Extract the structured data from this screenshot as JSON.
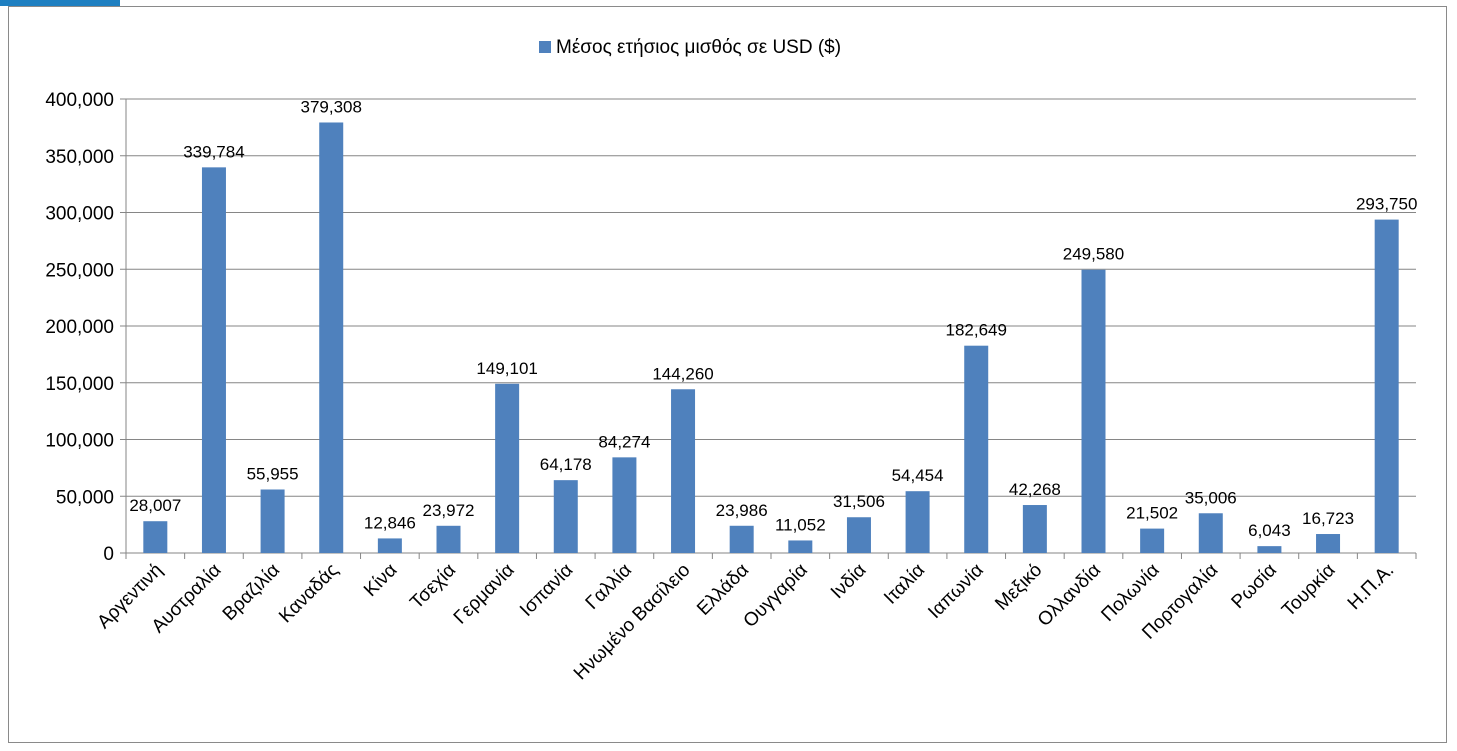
{
  "colors": {
    "bar": "#4f81bd",
    "grid": "#868686",
    "frame_accent": "#1e7fc1"
  },
  "chart_data": {
    "type": "bar",
    "title": "",
    "xlabel": "",
    "ylabel": "",
    "ylim": [
      0,
      400000
    ],
    "yticks": [
      0,
      50000,
      100000,
      150000,
      200000,
      250000,
      300000,
      350000,
      400000
    ],
    "ytick_labels": [
      "0",
      "50,000",
      "100,000",
      "150,000",
      "200,000",
      "250,000",
      "300,000",
      "350,000",
      "400,000"
    ],
    "grid": true,
    "legend_position": "top-center",
    "categories": [
      "Αργεντινή",
      "Αυστραλία",
      "Βραζιλία",
      "Καναδάς",
      "Κίνα",
      "Τσεχία",
      "Γερμανία",
      "Ισπανία",
      "Γαλλία",
      "Ηνωμένο Βασίλειο",
      "Ελλάδα",
      "Ουγγαρία",
      "Ινδία",
      "Ιταλία",
      "Ιαπωνία",
      "Μεξικό",
      "Ολλανδία",
      "Πολωνία",
      "Πορτογαλία",
      "Ρωσία",
      "Τουρκία",
      "Η.Π.Α."
    ],
    "series": [
      {
        "name": "Μέσος ετήσιος μισθός σε USD ($)",
        "values": [
          28007,
          339784,
          55955,
          379308,
          12846,
          23972,
          149101,
          64178,
          84274,
          144260,
          23986,
          11052,
          31506,
          54454,
          182649,
          42268,
          249580,
          21502,
          35006,
          6043,
          16723,
          293750
        ],
        "labels": [
          "28,007",
          "339,784",
          "55,955",
          "379,308",
          "12,846",
          "23,972",
          "149,101",
          "64,178",
          "84,274",
          "144,260",
          "23,986",
          "11,052",
          "31,506",
          "54,454",
          "182,649",
          "42,268",
          "249,580",
          "21,502",
          "35,006",
          "6,043",
          "16,723",
          "293,750"
        ]
      }
    ]
  }
}
